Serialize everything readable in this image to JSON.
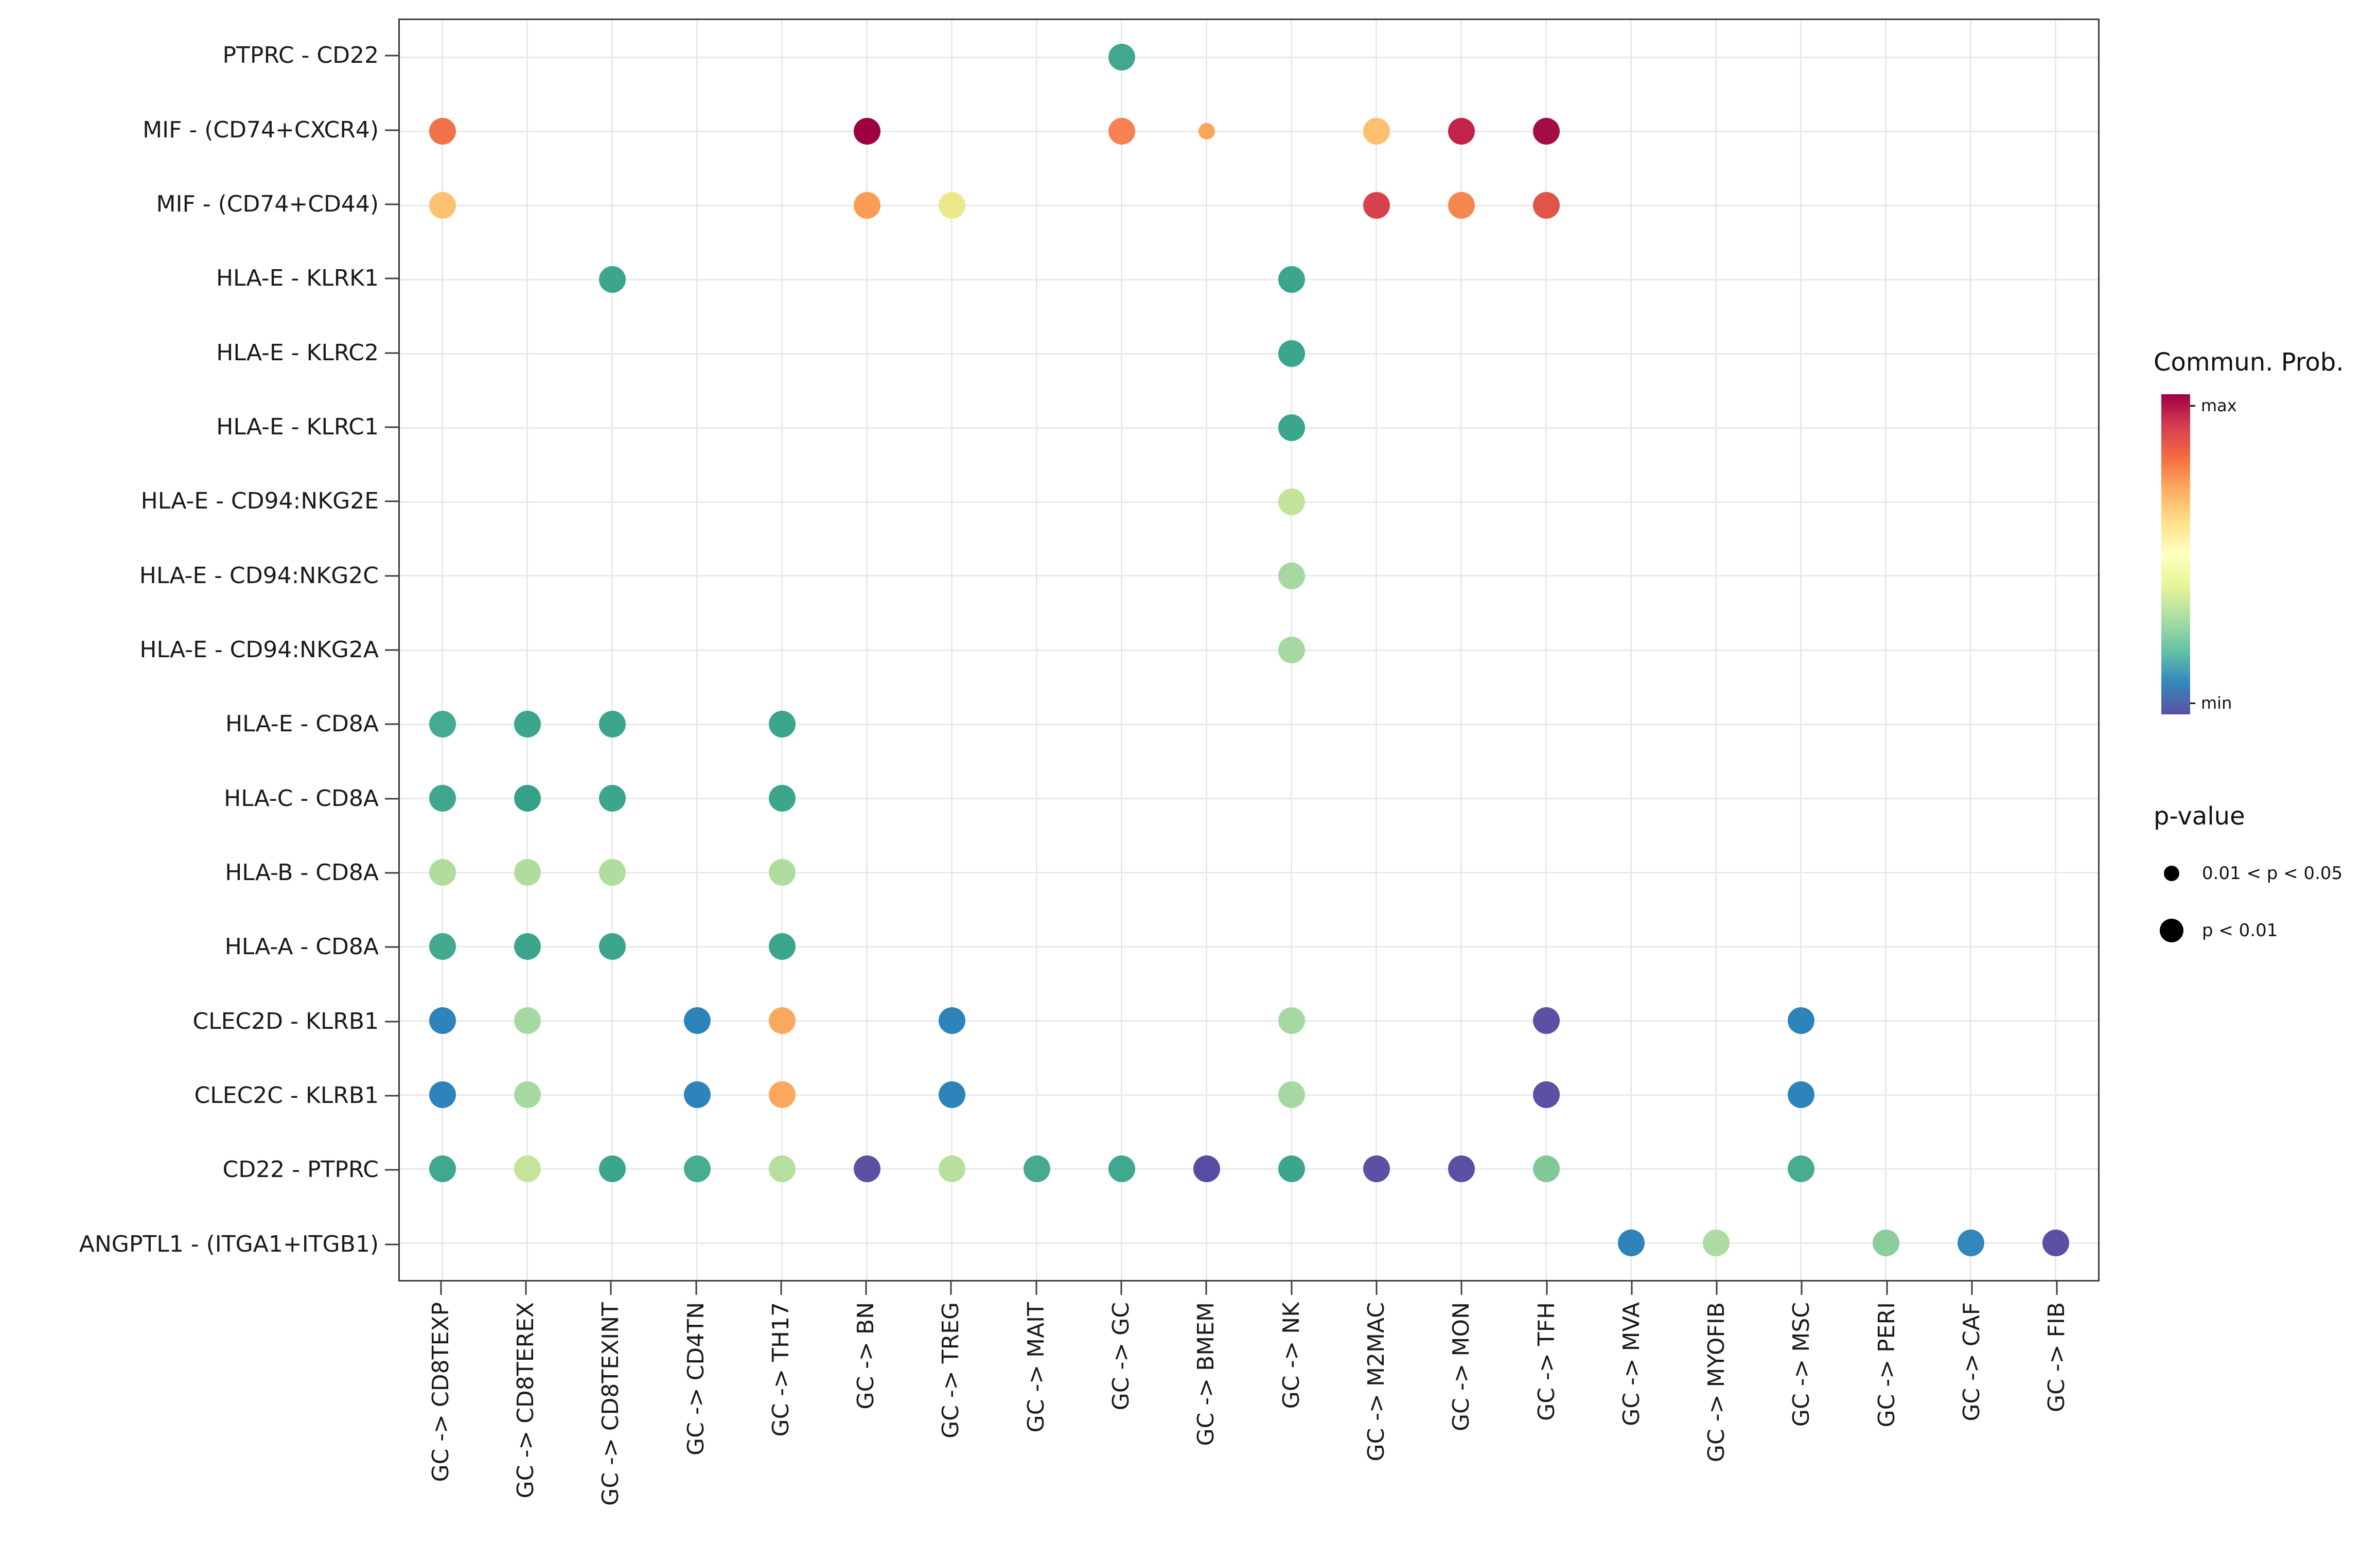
{
  "chart_data": {
    "type": "scatter",
    "subtype": "bubble-dotplot",
    "title": "",
    "xlabel": "",
    "ylabel": "",
    "grid": true,
    "x_categories": [
      "GC -> CD8TEXP",
      "GC -> CD8TEREX",
      "GC -> CD8TEXINT",
      "GC -> CD4TN",
      "GC -> TH17",
      "GC -> BN",
      "GC -> TREG",
      "GC -> MAIT",
      "GC -> GC",
      "GC -> BMEM",
      "GC -> NK",
      "GC -> M2MAC",
      "GC -> MON",
      "GC -> TFH",
      "GC -> MVA",
      "GC -> MYOFIB",
      "GC -> MSC",
      "GC -> PERI",
      "GC -> CAF",
      "GC -> FIB"
    ],
    "y_categories": [
      "PTPRC - CD22",
      "MIF - (CD74+CXCR4)",
      "MIF - (CD74+CD44)",
      "HLA-E - KLRK1",
      "HLA-E - KLRC2",
      "HLA-E - KLRC1",
      "HLA-E - CD94:NKG2E",
      "HLA-E - CD94:NKG2C",
      "HLA-E - CD94:NKG2A",
      "HLA-E - CD8A",
      "HLA-C - CD8A",
      "HLA-B - CD8A",
      "HLA-A - CD8A",
      "CLEC2D - KLRB1",
      "CLEC2C - KLRB1",
      "CD22 - PTPRC",
      "ANGPTL1 - (ITGA1+ITGB1)"
    ],
    "dots": [
      {
        "y": "PTPRC - CD22",
        "x": "GC -> GC",
        "c": "#41a78e",
        "p": "p < 0.01"
      },
      {
        "y": "MIF - (CD74+CXCR4)",
        "x": "GC -> CD8TEXP",
        "c": "#f1714b",
        "p": "p < 0.01"
      },
      {
        "y": "MIF - (CD74+CXCR4)",
        "x": "GC -> BN",
        "c": "#9e0142",
        "p": "p < 0.01"
      },
      {
        "y": "MIF - (CD74+CXCR4)",
        "x": "GC -> GC",
        "c": "#f58250",
        "p": "p < 0.01"
      },
      {
        "y": "MIF - (CD74+CXCR4)",
        "x": "GC -> BMEM",
        "c": "#f9a75b",
        "p": "0.01 < p < 0.05"
      },
      {
        "y": "MIF - (CD74+CXCR4)",
        "x": "GC -> M2MAC",
        "c": "#fdc06e",
        "p": "p < 0.01"
      },
      {
        "y": "MIF - (CD74+CXCR4)",
        "x": "GC -> MON",
        "c": "#c22348",
        "p": "p < 0.01"
      },
      {
        "y": "MIF - (CD74+CXCR4)",
        "x": "GC -> TFH",
        "c": "#a40d44",
        "p": "p < 0.01"
      },
      {
        "y": "MIF - (CD74+CD44)",
        "x": "GC -> CD8TEXP",
        "c": "#fdc271",
        "p": "p < 0.01"
      },
      {
        "y": "MIF - (CD74+CD44)",
        "x": "GC -> BN",
        "c": "#f99c55",
        "p": "p < 0.01"
      },
      {
        "y": "MIF - (CD74+CD44)",
        "x": "GC -> TREG",
        "c": "#ece88b",
        "p": "p < 0.01"
      },
      {
        "y": "MIF - (CD74+CD44)",
        "x": "GC -> M2MAC",
        "c": "#d8424d",
        "p": "p < 0.01"
      },
      {
        "y": "MIF - (CD74+CD44)",
        "x": "GC -> MON",
        "c": "#f6864f",
        "p": "p < 0.01"
      },
      {
        "y": "MIF - (CD74+CD44)",
        "x": "GC -> TFH",
        "c": "#e0544a",
        "p": "p < 0.01"
      },
      {
        "y": "HLA-E - KLRK1",
        "x": "GC -> CD8TEXINT",
        "c": "#3ba68c",
        "p": "p < 0.01"
      },
      {
        "y": "HLA-E - KLRK1",
        "x": "GC -> NK",
        "c": "#3ba68c",
        "p": "p < 0.01"
      },
      {
        "y": "HLA-E - KLRC2",
        "x": "GC -> NK",
        "c": "#3ba68c",
        "p": "p < 0.01"
      },
      {
        "y": "HLA-E - KLRC1",
        "x": "GC -> NK",
        "c": "#3ba68c",
        "p": "p < 0.01"
      },
      {
        "y": "HLA-E - CD94:NKG2E",
        "x": "GC -> NK",
        "c": "#c3e39b",
        "p": "p < 0.01"
      },
      {
        "y": "HLA-E - CD94:NKG2C",
        "x": "GC -> NK",
        "c": "#a5d9a1",
        "p": "p < 0.01"
      },
      {
        "y": "HLA-E - CD94:NKG2A",
        "x": "GC -> NK",
        "c": "#a5d9a1",
        "p": "p < 0.01"
      },
      {
        "y": "HLA-E - CD8A",
        "x": "GC -> CD8TEXP",
        "c": "#46aa90",
        "p": "p < 0.01"
      },
      {
        "y": "HLA-E - CD8A",
        "x": "GC -> CD8TEREX",
        "c": "#3ba68c",
        "p": "p < 0.01"
      },
      {
        "y": "HLA-E - CD8A",
        "x": "GC -> CD8TEXINT",
        "c": "#3ba68c",
        "p": "p < 0.01"
      },
      {
        "y": "HLA-E - CD8A",
        "x": "GC -> TH17",
        "c": "#3ba68c",
        "p": "p < 0.01"
      },
      {
        "y": "HLA-C - CD8A",
        "x": "GC -> CD8TEXP",
        "c": "#3ea78d",
        "p": "p < 0.01"
      },
      {
        "y": "HLA-C - CD8A",
        "x": "GC -> CD8TEREX",
        "c": "#34a189",
        "p": "p < 0.01"
      },
      {
        "y": "HLA-C - CD8A",
        "x": "GC -> CD8TEXINT",
        "c": "#3ba68c",
        "p": "p < 0.01"
      },
      {
        "y": "HLA-C - CD8A",
        "x": "GC -> TH17",
        "c": "#3ba68c",
        "p": "p < 0.01"
      },
      {
        "y": "HLA-B - CD8A",
        "x": "GC -> CD8TEXP",
        "c": "#b0dc9e",
        "p": "p < 0.01"
      },
      {
        "y": "HLA-B - CD8A",
        "x": "GC -> CD8TEREX",
        "c": "#b0dc9e",
        "p": "p < 0.01"
      },
      {
        "y": "HLA-B - CD8A",
        "x": "GC -> CD8TEXINT",
        "c": "#b0dc9e",
        "p": "p < 0.01"
      },
      {
        "y": "HLA-B - CD8A",
        "x": "GC -> TH17",
        "c": "#b0dc9e",
        "p": "p < 0.01"
      },
      {
        "y": "HLA-A - CD8A",
        "x": "GC -> CD8TEXP",
        "c": "#43a98f",
        "p": "p < 0.01"
      },
      {
        "y": "HLA-A - CD8A",
        "x": "GC -> CD8TEREX",
        "c": "#3ba68c",
        "p": "p < 0.01"
      },
      {
        "y": "HLA-A - CD8A",
        "x": "GC -> CD8TEXINT",
        "c": "#3ba68c",
        "p": "p < 0.01"
      },
      {
        "y": "HLA-A - CD8A",
        "x": "GC -> TH17",
        "c": "#3ba68c",
        "p": "p < 0.01"
      },
      {
        "y": "CLEC2D - KLRB1",
        "x": "GC -> CD8TEXP",
        "c": "#2e83ba",
        "p": "p < 0.01"
      },
      {
        "y": "CLEC2D - KLRB1",
        "x": "GC -> CD8TEREX",
        "c": "#a5d9a1",
        "p": "p < 0.01"
      },
      {
        "y": "CLEC2D - KLRB1",
        "x": "GC -> CD4TN",
        "c": "#2e83ba",
        "p": "p < 0.01"
      },
      {
        "y": "CLEC2D - KLRB1",
        "x": "GC -> TH17",
        "c": "#faa85c",
        "p": "p < 0.01"
      },
      {
        "y": "CLEC2D - KLRB1",
        "x": "GC -> TREG",
        "c": "#2e83ba",
        "p": "p < 0.01"
      },
      {
        "y": "CLEC2D - KLRB1",
        "x": "GC -> NK",
        "c": "#a5d9a1",
        "p": "p < 0.01"
      },
      {
        "y": "CLEC2D - KLRB1",
        "x": "GC -> TFH",
        "c": "#5a50a4",
        "p": "p < 0.01"
      },
      {
        "y": "CLEC2D - KLRB1",
        "x": "GC -> MSC",
        "c": "#2e83ba",
        "p": "p < 0.01"
      },
      {
        "y": "CLEC2C - KLRB1",
        "x": "GC -> CD8TEXP",
        "c": "#2e83ba",
        "p": "p < 0.01"
      },
      {
        "y": "CLEC2C - KLRB1",
        "x": "GC -> CD8TEREX",
        "c": "#a5d9a1",
        "p": "p < 0.01"
      },
      {
        "y": "CLEC2C - KLRB1",
        "x": "GC -> CD4TN",
        "c": "#2e83ba",
        "p": "p < 0.01"
      },
      {
        "y": "CLEC2C - KLRB1",
        "x": "GC -> TH17",
        "c": "#faa85c",
        "p": "p < 0.01"
      },
      {
        "y": "CLEC2C - KLRB1",
        "x": "GC -> TREG",
        "c": "#2e83ba",
        "p": "p < 0.01"
      },
      {
        "y": "CLEC2C - KLRB1",
        "x": "GC -> NK",
        "c": "#a5d9a1",
        "p": "p < 0.01"
      },
      {
        "y": "CLEC2C - KLRB1",
        "x": "GC -> TFH",
        "c": "#5a50a4",
        "p": "p < 0.01"
      },
      {
        "y": "CLEC2C - KLRB1",
        "x": "GC -> MSC",
        "c": "#2e83ba",
        "p": "p < 0.01"
      },
      {
        "y": "CD22 - PTPRC",
        "x": "GC -> CD8TEXP",
        "c": "#3fa88e",
        "p": "p < 0.01"
      },
      {
        "y": "CD22 - PTPRC",
        "x": "GC -> CD8TEREX",
        "c": "#c4e49b",
        "p": "p < 0.01"
      },
      {
        "y": "CD22 - PTPRC",
        "x": "GC -> CD8TEXINT",
        "c": "#3ba68c",
        "p": "p < 0.01"
      },
      {
        "y": "CD22 - PTPRC",
        "x": "GC -> CD4TN",
        "c": "#49ac92",
        "p": "p < 0.01"
      },
      {
        "y": "CD22 - PTPRC",
        "x": "GC -> TH17",
        "c": "#b7df9d",
        "p": "p < 0.01"
      },
      {
        "y": "CD22 - PTPRC",
        "x": "GC -> BN",
        "c": "#5a50a4",
        "p": "p < 0.01"
      },
      {
        "y": "CD22 - PTPRC",
        "x": "GC -> TREG",
        "c": "#b7df9d",
        "p": "p < 0.01"
      },
      {
        "y": "CD22 - PTPRC",
        "x": "GC -> MAIT",
        "c": "#45aa90",
        "p": "p < 0.01"
      },
      {
        "y": "CD22 - PTPRC",
        "x": "GC -> GC",
        "c": "#3fa88e",
        "p": "p < 0.01"
      },
      {
        "y": "CD22 - PTPRC",
        "x": "GC -> BMEM",
        "c": "#544ea3",
        "p": "p < 0.01"
      },
      {
        "y": "CD22 - PTPRC",
        "x": "GC -> NK",
        "c": "#3ba68c",
        "p": "p < 0.01"
      },
      {
        "y": "CD22 - PTPRC",
        "x": "GC -> M2MAC",
        "c": "#5a50a4",
        "p": "p < 0.01"
      },
      {
        "y": "CD22 - PTPRC",
        "x": "GC -> MON",
        "c": "#5a50a4",
        "p": "p < 0.01"
      },
      {
        "y": "CD22 - PTPRC",
        "x": "GC -> TFH",
        "c": "#83c998",
        "p": "p < 0.01"
      },
      {
        "y": "CD22 - PTPRC",
        "x": "GC -> MSC",
        "c": "#49ac92",
        "p": "p < 0.01"
      },
      {
        "y": "ANGPTL1 - (ITGA1+ITGB1)",
        "x": "GC -> MVA",
        "c": "#2e83ba",
        "p": "p < 0.01"
      },
      {
        "y": "ANGPTL1 - (ITGA1+ITGB1)",
        "x": "GC -> MYOFIB",
        "c": "#aedb9f",
        "p": "p < 0.01"
      },
      {
        "y": "ANGPTL1 - (ITGA1+ITGB1)",
        "x": "GC -> PERI",
        "c": "#8ccd9b",
        "p": "p < 0.01"
      },
      {
        "y": "ANGPTL1 - (ITGA1+ITGB1)",
        "x": "GC -> CAF",
        "c": "#3186bc",
        "p": "p < 0.01"
      },
      {
        "y": "ANGPTL1 - (ITGA1+ITGB1)",
        "x": "GC -> FIB",
        "c": "#5a50a4",
        "p": "p < 0.01"
      }
    ],
    "legend": {
      "colorbar_title": "Commun. Prob.",
      "colorbar_max_label": "max",
      "colorbar_min_label": "min",
      "colorbar_colors": [
        "#9e0142",
        "#d53e4f",
        "#f46d43",
        "#fdae61",
        "#fee08b",
        "#ffffbf",
        "#e6f598",
        "#abdda4",
        "#66c2a5",
        "#3288bd",
        "#5e4fa2"
      ],
      "size_title": "p-value",
      "size_items": [
        {
          "label": "0.01 < p < 0.05",
          "size": "small"
        },
        {
          "label": "p < 0.01",
          "size": "large"
        }
      ]
    },
    "colors": {
      "panel_border": "#3c3c3c",
      "gridline": "#e9e9e9",
      "tick": "#3c3c3c",
      "legend_dot": "#000000"
    }
  }
}
